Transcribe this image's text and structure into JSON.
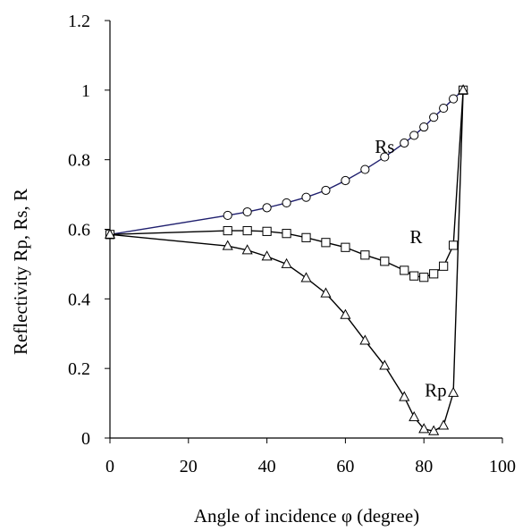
{
  "chart_data": {
    "type": "line",
    "title": "",
    "xlabel": "Angle of incidence φ (degree)",
    "ylabel": "Reflectivity Rp, Rs, R",
    "xlim": [
      0,
      100
    ],
    "ylim": [
      0,
      1.2
    ],
    "xticks": [
      0,
      20,
      40,
      60,
      80,
      100
    ],
    "yticks": [
      0,
      0.2,
      0.4,
      0.6,
      0.8,
      1,
      1.2
    ],
    "xtick_labels": [
      "0",
      "20",
      "40",
      "60",
      "80",
      "100"
    ],
    "ytick_labels": [
      "0",
      "0.2",
      "0.4",
      "0.6",
      "0.8",
      "1",
      "1.2"
    ],
    "grid": false,
    "legend": "none",
    "series": [
      {
        "name": "Rs",
        "marker": "circle",
        "color": "#1f1f6e",
        "x": [
          0,
          30,
          35,
          40,
          45,
          50,
          55,
          60,
          65,
          70,
          75,
          77.5,
          80,
          82.5,
          85,
          87.5,
          90
        ],
        "y": [
          0.585,
          0.64,
          0.65,
          0.662,
          0.676,
          0.692,
          0.712,
          0.74,
          0.772,
          0.808,
          0.848,
          0.87,
          0.894,
          0.922,
          0.948,
          0.975,
          1.0
        ]
      },
      {
        "name": "R",
        "marker": "square",
        "color": "#000000",
        "x": [
          0,
          30,
          35,
          40,
          45,
          50,
          55,
          60,
          65,
          70,
          75,
          77.5,
          80,
          82.5,
          85,
          87.5,
          90
        ],
        "y": [
          0.585,
          0.596,
          0.596,
          0.594,
          0.588,
          0.576,
          0.562,
          0.548,
          0.526,
          0.508,
          0.482,
          0.466,
          0.462,
          0.472,
          0.494,
          0.554,
          1.0
        ]
      },
      {
        "name": "Rp",
        "marker": "triangle",
        "color": "#000000",
        "x": [
          0,
          30,
          35,
          40,
          45,
          50,
          55,
          60,
          65,
          70,
          75,
          77.5,
          80,
          82.5,
          85,
          87.5,
          90
        ],
        "y": [
          0.585,
          0.552,
          0.54,
          0.522,
          0.5,
          0.46,
          0.416,
          0.354,
          0.28,
          0.208,
          0.118,
          0.06,
          0.026,
          0.02,
          0.036,
          0.13,
          1.0
        ]
      }
    ],
    "annotations": [
      {
        "text": "Rs",
        "series": "Rs",
        "x": 70,
        "y": 0.82
      },
      {
        "text": "R",
        "series": "R",
        "x": 78,
        "y": 0.56
      },
      {
        "text": "Rp",
        "series": "Rp",
        "x": 83,
        "y": 0.12
      }
    ]
  }
}
